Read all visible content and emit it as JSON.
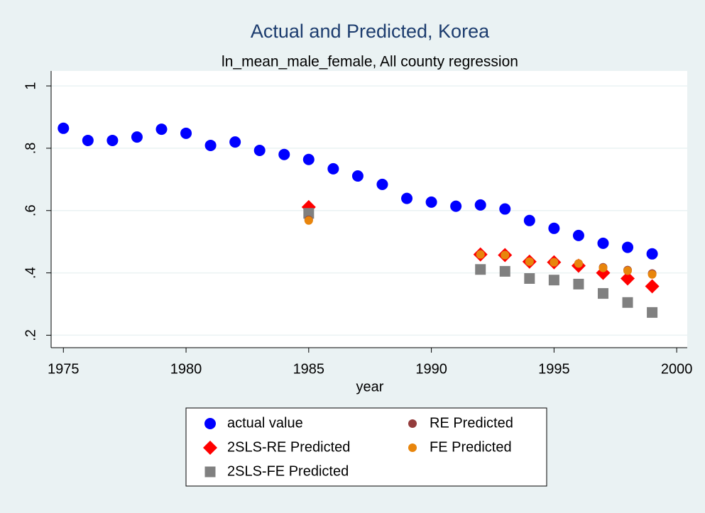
{
  "chart_data": {
    "type": "scatter",
    "title": "Actual and Predicted, Korea",
    "subtitle": "ln_mean_male_female, All county regression",
    "x_label": "year",
    "x": [
      1975,
      1976,
      1977,
      1978,
      1979,
      1980,
      1981,
      1982,
      1983,
      1984,
      1985,
      1986,
      1987,
      1988,
      1989,
      1990,
      1991,
      1992,
      1993,
      1994,
      1995,
      1996,
      1997,
      1998,
      1999
    ],
    "xlim": [
      1974.5,
      2000.43
    ],
    "xticks": [
      1975,
      1980,
      1985,
      1990,
      1995,
      2000
    ],
    "ylim": [
      0.16,
      1.048
    ],
    "yticks": [
      {
        "value": 0.2,
        "label": ".2"
      },
      {
        "value": 0.4,
        "label": ".4"
      },
      {
        "value": 0.6,
        "label": ".6"
      },
      {
        "value": 0.8,
        "label": ".8"
      },
      1
    ],
    "grid": true,
    "series": [
      {
        "name": "actual value",
        "color": "#0000ff",
        "marker": "circle",
        "values": [
          0.864,
          0.825,
          0.825,
          0.836,
          0.861,
          0.848,
          0.809,
          0.82,
          0.793,
          0.78,
          0.764,
          0.734,
          0.711,
          0.684,
          0.639,
          0.627,
          0.614,
          0.618,
          0.605,
          0.568,
          0.543,
          0.52,
          0.495,
          0.482,
          0.461
        ]
      },
      {
        "name": "RE Predicted",
        "color": "#943c3c",
        "marker": "small-circle",
        "values": [
          null,
          null,
          null,
          null,
          null,
          null,
          null,
          null,
          null,
          null,
          0.57,
          null,
          null,
          null,
          null,
          null,
          null,
          0.459,
          0.457,
          0.436,
          0.434,
          0.43,
          0.418,
          0.409,
          0.398
        ]
      },
      {
        "name": "2SLS-RE Predicted",
        "color": "#ff0000",
        "marker": "diamond",
        "values": [
          null,
          null,
          null,
          null,
          null,
          null,
          null,
          null,
          null,
          null,
          0.611,
          null,
          null,
          null,
          null,
          null,
          null,
          0.459,
          0.457,
          0.436,
          0.434,
          0.423,
          0.4,
          0.382,
          0.357
        ]
      },
      {
        "name": "FE Predicted",
        "color": "#e8850c",
        "marker": "small-circle",
        "values": [
          null,
          null,
          null,
          null,
          null,
          null,
          null,
          null,
          null,
          null,
          0.568,
          null,
          null,
          null,
          null,
          null,
          null,
          0.459,
          0.457,
          0.436,
          0.434,
          0.43,
          0.416,
          0.407,
          0.395
        ]
      },
      {
        "name": "2SLS-FE Predicted",
        "color": "#808080",
        "marker": "square",
        "values": [
          null,
          null,
          null,
          null,
          null,
          null,
          null,
          null,
          null,
          null,
          0.591,
          null,
          null,
          null,
          null,
          null,
          null,
          0.411,
          0.405,
          0.382,
          0.377,
          0.364,
          0.334,
          0.305,
          0.273
        ]
      }
    ]
  }
}
